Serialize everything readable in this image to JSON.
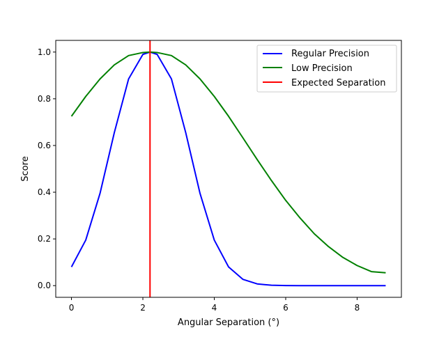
{
  "chart_data": {
    "type": "line",
    "title": "",
    "xlabel": "Angular Separation (°)",
    "ylabel": "Score",
    "xlim": [
      -0.44,
      9.24
    ],
    "ylim": [
      -0.05,
      1.05
    ],
    "xticks": [
      0,
      2,
      4,
      6,
      8
    ],
    "xtick_labels": [
      "0",
      "2",
      "4",
      "6",
      "8"
    ],
    "yticks": [
      0.0,
      0.2,
      0.4,
      0.6,
      0.8,
      1.0
    ],
    "ytick_labels": [
      "0.0",
      "0.2",
      "0.4",
      "0.6",
      "0.8",
      "1.0"
    ],
    "grid": false,
    "legend_position": "upper right",
    "x": [
      0.0,
      0.4,
      0.8,
      1.2,
      1.6,
      2.0,
      2.2,
      2.4,
      2.8,
      3.2,
      3.6,
      4.0,
      4.4,
      4.8,
      5.2,
      5.6,
      6.0,
      6.4,
      6.8,
      7.2,
      7.6,
      8.0,
      8.4,
      8.8
    ],
    "series": [
      {
        "name": "Regular Precision",
        "color": "#0000ff",
        "values": [
          0.08,
          0.195,
          0.395,
          0.655,
          0.885,
          0.99,
          1.0,
          0.99,
          0.885,
          0.655,
          0.395,
          0.195,
          0.08,
          0.027,
          0.0075,
          0.0017,
          0.0003,
          0.0,
          0.0,
          0.0,
          0.0,
          0.0,
          0.0,
          0.0
        ]
      },
      {
        "name": "Low Precision",
        "color": "#008000",
        "values": [
          0.725,
          0.81,
          0.885,
          0.945,
          0.985,
          0.998,
          1.0,
          0.998,
          0.985,
          0.945,
          0.885,
          0.81,
          0.725,
          0.633,
          0.54,
          0.45,
          0.365,
          0.29,
          0.222,
          0.167,
          0.121,
          0.086,
          0.06,
          0.055
        ]
      }
    ],
    "vlines": [
      {
        "name": "Expected Separation",
        "color": "#ff0000",
        "x": 2.2
      }
    ]
  }
}
